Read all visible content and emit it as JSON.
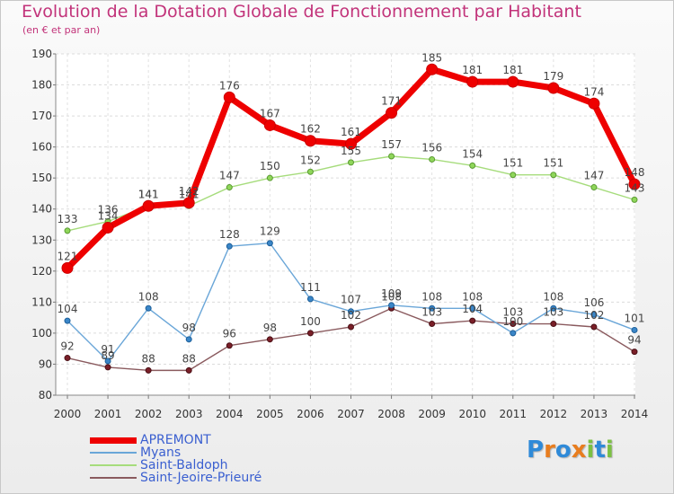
{
  "header": {
    "title": "Evolution de la Dotation Globale de Fonctionnement par Habitant",
    "subtitle": "(en € et par an)"
  },
  "logo": {
    "text": "Proxiti",
    "letters": [
      "P",
      "r",
      "o",
      "x",
      "i",
      "t",
      "i"
    ],
    "colors": [
      "#2f8ad8",
      "#e87d1e",
      "#2f8ad8",
      "#e87d1e",
      "#7cc043",
      "#2f8ad8",
      "#7cc043"
    ]
  },
  "chart_data": {
    "type": "line",
    "title": "Evolution de la Dotation Globale de Fonctionnement par Habitant",
    "subtitle": "(en € et par an)",
    "xlabel": "",
    "ylabel": "",
    "ylim": [
      80,
      190
    ],
    "yticks": [
      80,
      90,
      100,
      110,
      120,
      130,
      140,
      150,
      160,
      170,
      180,
      190
    ],
    "grid": true,
    "legend_position": "bottom-left",
    "x": [
      2000,
      2001,
      2002,
      2003,
      2004,
      2005,
      2006,
      2007,
      2008,
      2009,
      2010,
      2011,
      2012,
      2013,
      2014
    ],
    "series": [
      {
        "name": "Saint-Jeoire-Prieuré",
        "color": "#7a1f28",
        "line_color": "#8a5a5e",
        "values": [
          92,
          89,
          88,
          88,
          96,
          98,
          100,
          102,
          108,
          103,
          104,
          103,
          103,
          102,
          94
        ]
      },
      {
        "name": "Myans",
        "color": "#3a86c8",
        "line_color": "#6aa6d8",
        "values": [
          104,
          91,
          108,
          98,
          128,
          129,
          111,
          107,
          109,
          108,
          108,
          100,
          108,
          106,
          101
        ]
      },
      {
        "name": "Saint-Baldoph",
        "color": "#8fd65a",
        "line_color": "#a6dc7c",
        "values": [
          133,
          136,
          141,
          141,
          147,
          150,
          152,
          155,
          157,
          156,
          154,
          151,
          151,
          147,
          143
        ]
      },
      {
        "name": "APREMONT",
        "color": "#ee0000",
        "line_color": "#ee0000",
        "values": [
          121,
          134,
          141,
          142,
          176,
          167,
          162,
          161,
          171,
          185,
          181,
          181,
          179,
          174,
          148
        ]
      }
    ],
    "legend_order": [
      "APREMONT",
      "Myans",
      "Saint-Baldoph",
      "Saint-Jeoire-Prieuré"
    ]
  }
}
